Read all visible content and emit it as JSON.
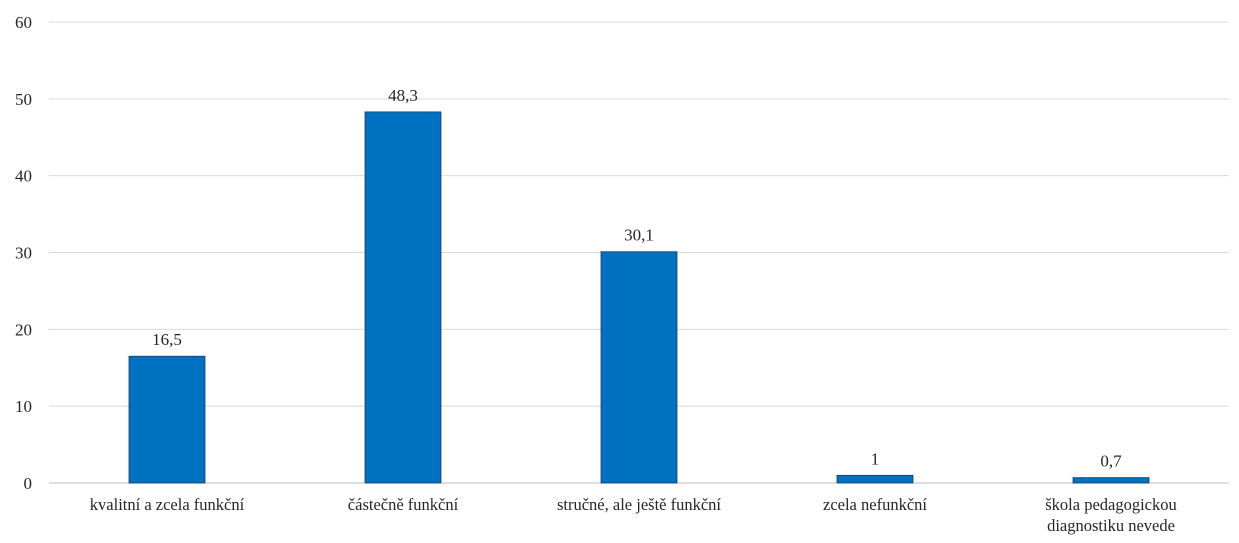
{
  "chart_data": {
    "type": "bar",
    "title": "",
    "xlabel": "",
    "ylabel": "",
    "categories": [
      [
        "kvalitní a zcela funkční"
      ],
      [
        "částečně funkční"
      ],
      [
        "stručné, ale ještě funkční"
      ],
      [
        "zcela nefunkční"
      ],
      [
        "škola pedagogickou",
        "diagnostiku nevede"
      ]
    ],
    "values": [
      16.5,
      48.3,
      30.1,
      1,
      0.7
    ],
    "value_labels": [
      "16,5",
      "48,3",
      "30,1",
      "1",
      "0,7"
    ],
    "ylim": [
      0,
      60
    ],
    "yticks": [
      0,
      10,
      20,
      30,
      40,
      50,
      60
    ],
    "grid": true,
    "legend": "none",
    "bar_color": "#0070c0",
    "bar_edge_color": "#1f3864"
  }
}
